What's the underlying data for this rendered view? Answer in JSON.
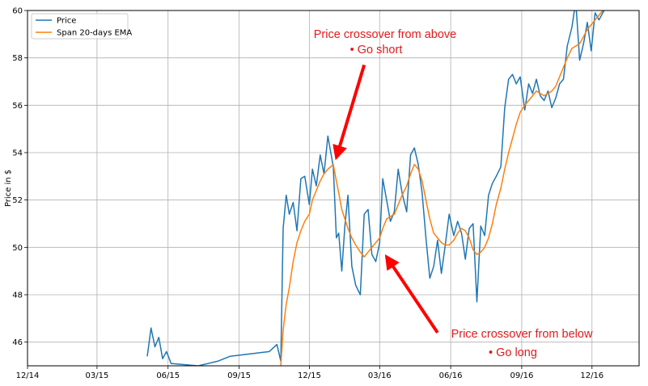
{
  "chart_data": {
    "type": "line",
    "title": "",
    "xlabel": "",
    "ylabel": "Price in $",
    "ylim": [
      45,
      60
    ],
    "xlim": [
      "2014-12-01",
      "2017-01-31"
    ],
    "grid": true,
    "legend_position": "top-left",
    "x_ticks": [
      "12/14",
      "03/15",
      "06/15",
      "09/15",
      "12/15",
      "03/16",
      "06/16",
      "09/16",
      "12/16"
    ],
    "y_ticks": [
      46,
      48,
      50,
      52,
      54,
      56,
      58,
      60
    ],
    "series": [
      {
        "name": "Price",
        "color": "#1f77b4",
        "x": [
          "2015-05-05",
          "2015-05-10",
          "2015-05-15",
          "2015-05-20",
          "2015-05-25",
          "2015-05-30",
          "2015-06-05",
          "2015-07-10",
          "2015-08-05",
          "2015-08-20",
          "2015-10-10",
          "2015-10-20",
          "2015-10-25",
          "2015-10-28",
          "2015-11-01",
          "2015-11-05",
          "2015-11-10",
          "2015-11-15",
          "2015-11-20",
          "2015-11-25",
          "2015-12-01",
          "2015-12-05",
          "2015-12-10",
          "2015-12-15",
          "2015-12-20",
          "2015-12-25",
          "2016-01-01",
          "2016-01-05",
          "2016-01-08",
          "2016-01-12",
          "2016-01-16",
          "2016-01-20",
          "2016-01-25",
          "2016-01-30",
          "2016-02-05",
          "2016-02-10",
          "2016-02-15",
          "2016-02-20",
          "2016-02-25",
          "2016-03-01",
          "2016-03-05",
          "2016-03-10",
          "2016-03-15",
          "2016-03-20",
          "2016-03-25",
          "2016-03-30",
          "2016-04-05",
          "2016-04-10",
          "2016-04-15",
          "2016-04-20",
          "2016-04-25",
          "2016-04-30",
          "2016-05-05",
          "2016-05-10",
          "2016-05-15",
          "2016-05-20",
          "2016-05-25",
          "2016-05-30",
          "2016-06-05",
          "2016-06-10",
          "2016-06-15",
          "2016-06-20",
          "2016-06-25",
          "2016-06-30",
          "2016-07-05",
          "2016-07-10",
          "2016-07-15",
          "2016-07-20",
          "2016-07-25",
          "2016-07-30",
          "2016-08-05",
          "2016-08-10",
          "2016-08-15",
          "2016-08-20",
          "2016-08-25",
          "2016-08-30",
          "2016-09-05",
          "2016-09-10",
          "2016-09-15",
          "2016-09-20",
          "2016-09-25",
          "2016-09-30",
          "2016-10-05",
          "2016-10-10",
          "2016-10-15",
          "2016-10-20",
          "2016-10-25",
          "2016-10-30",
          "2016-11-05",
          "2016-11-10",
          "2016-11-15",
          "2016-11-20",
          "2016-11-25",
          "2016-11-30",
          "2016-12-05",
          "2016-12-10",
          "2016-12-15",
          "2016-12-20"
        ],
        "values": [
          45.4,
          46.6,
          45.8,
          46.2,
          45.3,
          45.6,
          45.1,
          45.0,
          45.2,
          45.4,
          45.6,
          45.9,
          45.2,
          50.8,
          52.2,
          51.4,
          51.9,
          50.7,
          52.9,
          53.0,
          51.8,
          53.3,
          52.6,
          53.9,
          53.1,
          54.7,
          53.4,
          50.4,
          50.6,
          49.0,
          50.9,
          52.2,
          49.2,
          48.4,
          48.0,
          51.4,
          51.6,
          49.7,
          49.4,
          50.2,
          52.9,
          52.0,
          51.1,
          51.5,
          53.3,
          52.3,
          51.5,
          53.9,
          54.2,
          53.5,
          52.3,
          50.4,
          48.7,
          49.2,
          50.3,
          48.9,
          50.1,
          51.4,
          50.5,
          51.1,
          50.6,
          49.5,
          50.8,
          51.0,
          47.7,
          50.9,
          50.5,
          52.2,
          52.7,
          53.0,
          53.4,
          55.9,
          57.1,
          57.3,
          56.9,
          57.2,
          55.8,
          56.9,
          56.5,
          57.1,
          56.4,
          56.2,
          56.6,
          55.9,
          56.3,
          56.9,
          57.1,
          58.5,
          59.3,
          60.4,
          57.9,
          58.6,
          59.5,
          58.3,
          59.9,
          59.6,
          59.9,
          60.2
        ]
      },
      {
        "name": "Span 20-days EMA",
        "color": "#ff7f0e",
        "x": [
          "2015-10-25",
          "2015-10-28",
          "2015-11-01",
          "2015-11-05",
          "2015-11-10",
          "2015-11-15",
          "2015-11-20",
          "2015-11-25",
          "2015-12-01",
          "2015-12-05",
          "2015-12-10",
          "2015-12-15",
          "2015-12-20",
          "2015-12-25",
          "2016-01-01",
          "2016-01-05",
          "2016-01-08",
          "2016-01-12",
          "2016-01-16",
          "2016-01-20",
          "2016-01-25",
          "2016-01-30",
          "2016-02-05",
          "2016-02-10",
          "2016-02-15",
          "2016-02-20",
          "2016-02-25",
          "2016-03-01",
          "2016-03-05",
          "2016-03-10",
          "2016-03-15",
          "2016-03-20",
          "2016-03-25",
          "2016-03-30",
          "2016-04-05",
          "2016-04-10",
          "2016-04-15",
          "2016-04-20",
          "2016-04-25",
          "2016-04-30",
          "2016-05-05",
          "2016-05-10",
          "2016-05-15",
          "2016-05-20",
          "2016-05-25",
          "2016-05-30",
          "2016-06-05",
          "2016-06-10",
          "2016-06-15",
          "2016-06-20",
          "2016-06-25",
          "2016-06-30",
          "2016-07-05",
          "2016-07-10",
          "2016-07-15",
          "2016-07-20",
          "2016-07-25",
          "2016-07-30",
          "2016-08-05",
          "2016-08-10",
          "2016-08-15",
          "2016-08-20",
          "2016-08-25",
          "2016-08-30",
          "2016-09-05",
          "2016-09-10",
          "2016-09-15",
          "2016-09-20",
          "2016-09-25",
          "2016-09-30",
          "2016-10-05",
          "2016-10-10",
          "2016-10-15",
          "2016-10-20",
          "2016-10-25",
          "2016-10-30",
          "2016-11-05",
          "2016-11-10",
          "2016-11-15",
          "2016-11-20",
          "2016-11-25",
          "2016-11-30",
          "2016-12-05",
          "2016-12-10",
          "2016-12-15",
          "2016-12-20"
        ],
        "values": [
          45.0,
          46.5,
          47.6,
          48.3,
          49.4,
          50.2,
          50.7,
          51.1,
          51.4,
          52.0,
          52.4,
          52.8,
          53.1,
          53.3,
          53.5,
          52.8,
          52.3,
          51.6,
          51.2,
          50.8,
          50.4,
          50.1,
          49.8,
          49.6,
          49.8,
          50.0,
          50.2,
          50.4,
          50.8,
          51.2,
          51.3,
          51.4,
          51.8,
          52.2,
          52.6,
          53.1,
          53.5,
          53.3,
          52.8,
          52.0,
          51.2,
          50.6,
          50.4,
          50.2,
          50.1,
          50.1,
          50.3,
          50.6,
          50.8,
          50.7,
          50.4,
          49.9,
          49.7,
          49.8,
          50.0,
          50.4,
          51.0,
          51.8,
          52.5,
          53.3,
          54.0,
          54.6,
          55.2,
          55.7,
          56.0,
          56.2,
          56.4,
          56.6,
          56.5,
          56.4,
          56.5,
          56.6,
          56.8,
          57.2,
          57.6,
          58.0,
          58.4,
          58.5,
          58.6,
          58.9,
          59.2,
          59.4,
          59.6,
          59.8,
          60.0,
          60.1
        ]
      }
    ],
    "annotations": [
      {
        "lines": [
          "Price crossover from above",
          "• Go short"
        ],
        "arrow_from": [
          "2016-02-10",
          57.7
        ],
        "arrow_to": [
          "2016-01-05",
          53.8
        ]
      },
      {
        "lines": [
          "Price crossover from below",
          "• Go long"
        ],
        "arrow_from": [
          "2016-05-15",
          46.4
        ],
        "arrow_to": [
          "2016-03-10",
          49.6
        ]
      }
    ]
  }
}
